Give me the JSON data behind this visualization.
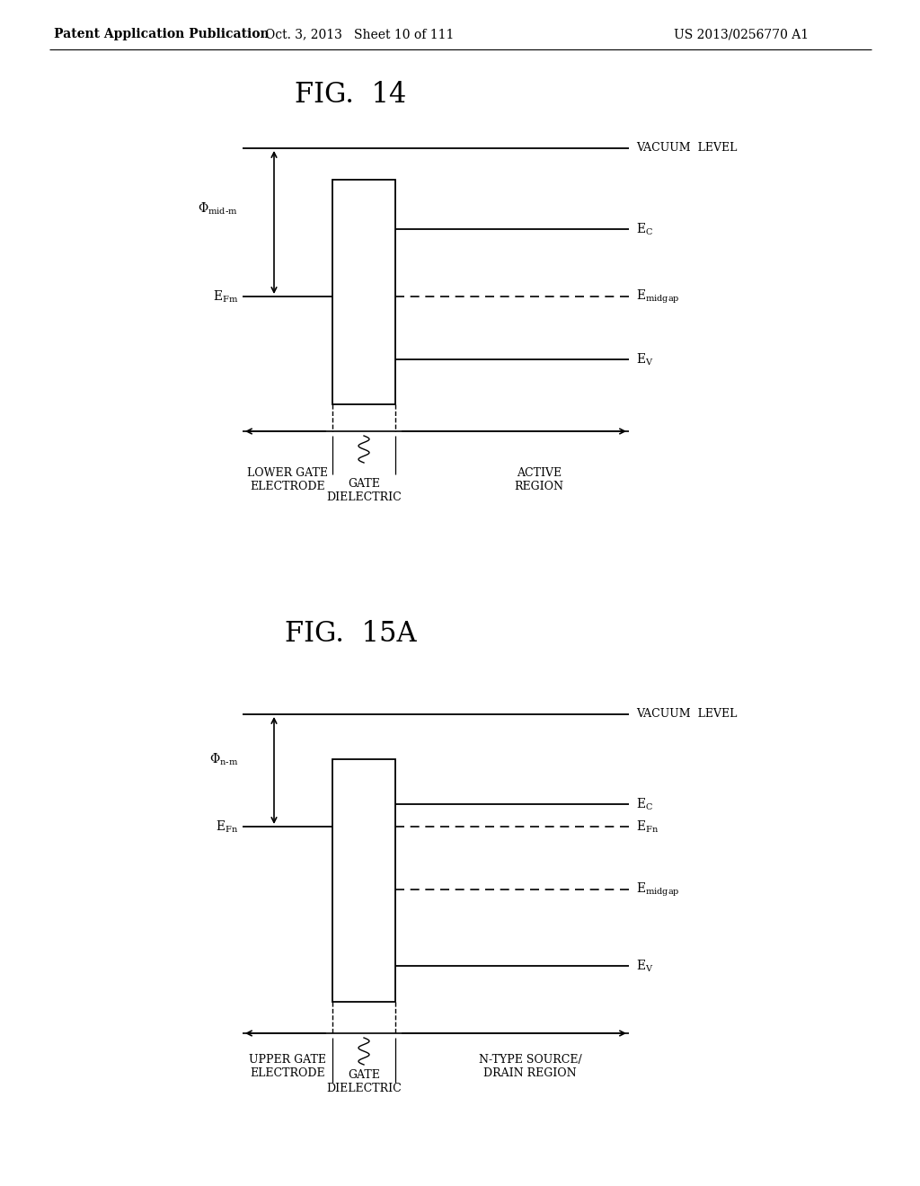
{
  "bg_color": "#ffffff",
  "page_width": 10.24,
  "page_height": 13.2,
  "header_left": "Patent Application Publication",
  "header_center": "Oct. 3, 2013   Sheet 10 of 111",
  "header_right": "US 2013/0256770 A1",
  "fig14_title": "FIG.  14",
  "fig15a_title": "FIG.  15A"
}
